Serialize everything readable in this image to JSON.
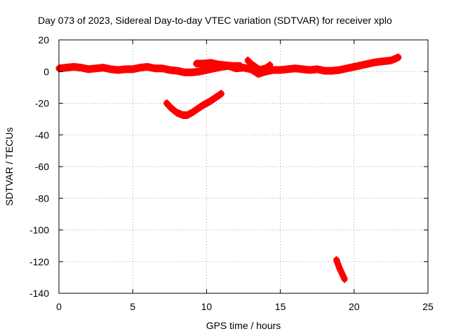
{
  "chart_data": {
    "type": "scatter",
    "title": "Day 073 of 2023, Sidereal Day-to-day VTEC variation (SDTVAR) for receiver xplo",
    "xlabel": "GPS time / hours",
    "ylabel": "SDTVAR / TECUs",
    "xlim": [
      0,
      25
    ],
    "ylim": [
      -140,
      20
    ],
    "xticks": [
      0,
      5,
      10,
      15,
      20,
      25
    ],
    "yticks": [
      20,
      0,
      -20,
      -40,
      -60,
      -80,
      -100,
      -120,
      -140
    ],
    "grid": true,
    "color": "#ff0000",
    "series": [
      {
        "name": "main-band",
        "x": [
          0.0,
          0.5,
          1.0,
          1.5,
          2.0,
          2.5,
          3.0,
          3.5,
          4.0,
          4.5,
          5.0,
          5.5,
          6.0,
          6.5,
          7.0,
          7.5,
          8.0,
          8.5,
          9.0,
          9.5,
          10.0,
          10.5,
          11.0,
          11.5,
          12.0,
          12.5,
          13.0,
          13.5,
          14.0,
          14.5,
          15.0,
          15.5,
          16.0,
          16.5,
          17.0,
          17.5,
          18.0,
          18.5,
          19.0,
          19.5,
          20.0,
          20.5,
          21.0,
          21.5,
          22.0,
          22.5,
          23.0
        ],
        "y": [
          2,
          2.5,
          3,
          2.5,
          1.5,
          2,
          2.5,
          1.5,
          1,
          1.5,
          1.5,
          2.5,
          3,
          2,
          2,
          1,
          0.5,
          -0.5,
          -0.5,
          0,
          1,
          2,
          3,
          3.5,
          2,
          2.5,
          1.5,
          -1.5,
          0,
          1,
          1,
          1.5,
          2,
          1.5,
          1,
          1.5,
          0.5,
          0.5,
          1,
          2,
          3,
          4,
          5,
          6,
          6.5,
          7,
          9
        ]
      },
      {
        "name": "upper-branch-a",
        "x": [
          9.3,
          9.8,
          10.3,
          10.8,
          11.3,
          11.8,
          12.3
        ],
        "y": [
          5,
          5,
          5.5,
          4.5,
          4,
          3.5,
          3.5
        ]
      },
      {
        "name": "upper-branch-b",
        "x": [
          12.8,
          13.0,
          13.3,
          13.6,
          14.0,
          14.3
        ],
        "y": [
          7,
          5,
          3,
          1,
          2,
          4
        ]
      },
      {
        "name": "dip-arc",
        "x": [
          7.3,
          7.6,
          8.0,
          8.4,
          8.7,
          9.0,
          9.4,
          9.8,
          10.2,
          10.6,
          11.0
        ],
        "y": [
          -20,
          -23,
          -26,
          -27.5,
          -27.5,
          -26,
          -23.5,
          -21,
          -19,
          -16.5,
          -14
        ]
      },
      {
        "name": "late-drop",
        "x": [
          18.8,
          19.0,
          19.2,
          19.35
        ],
        "y": [
          -119,
          -124,
          -128,
          -131
        ]
      }
    ]
  }
}
